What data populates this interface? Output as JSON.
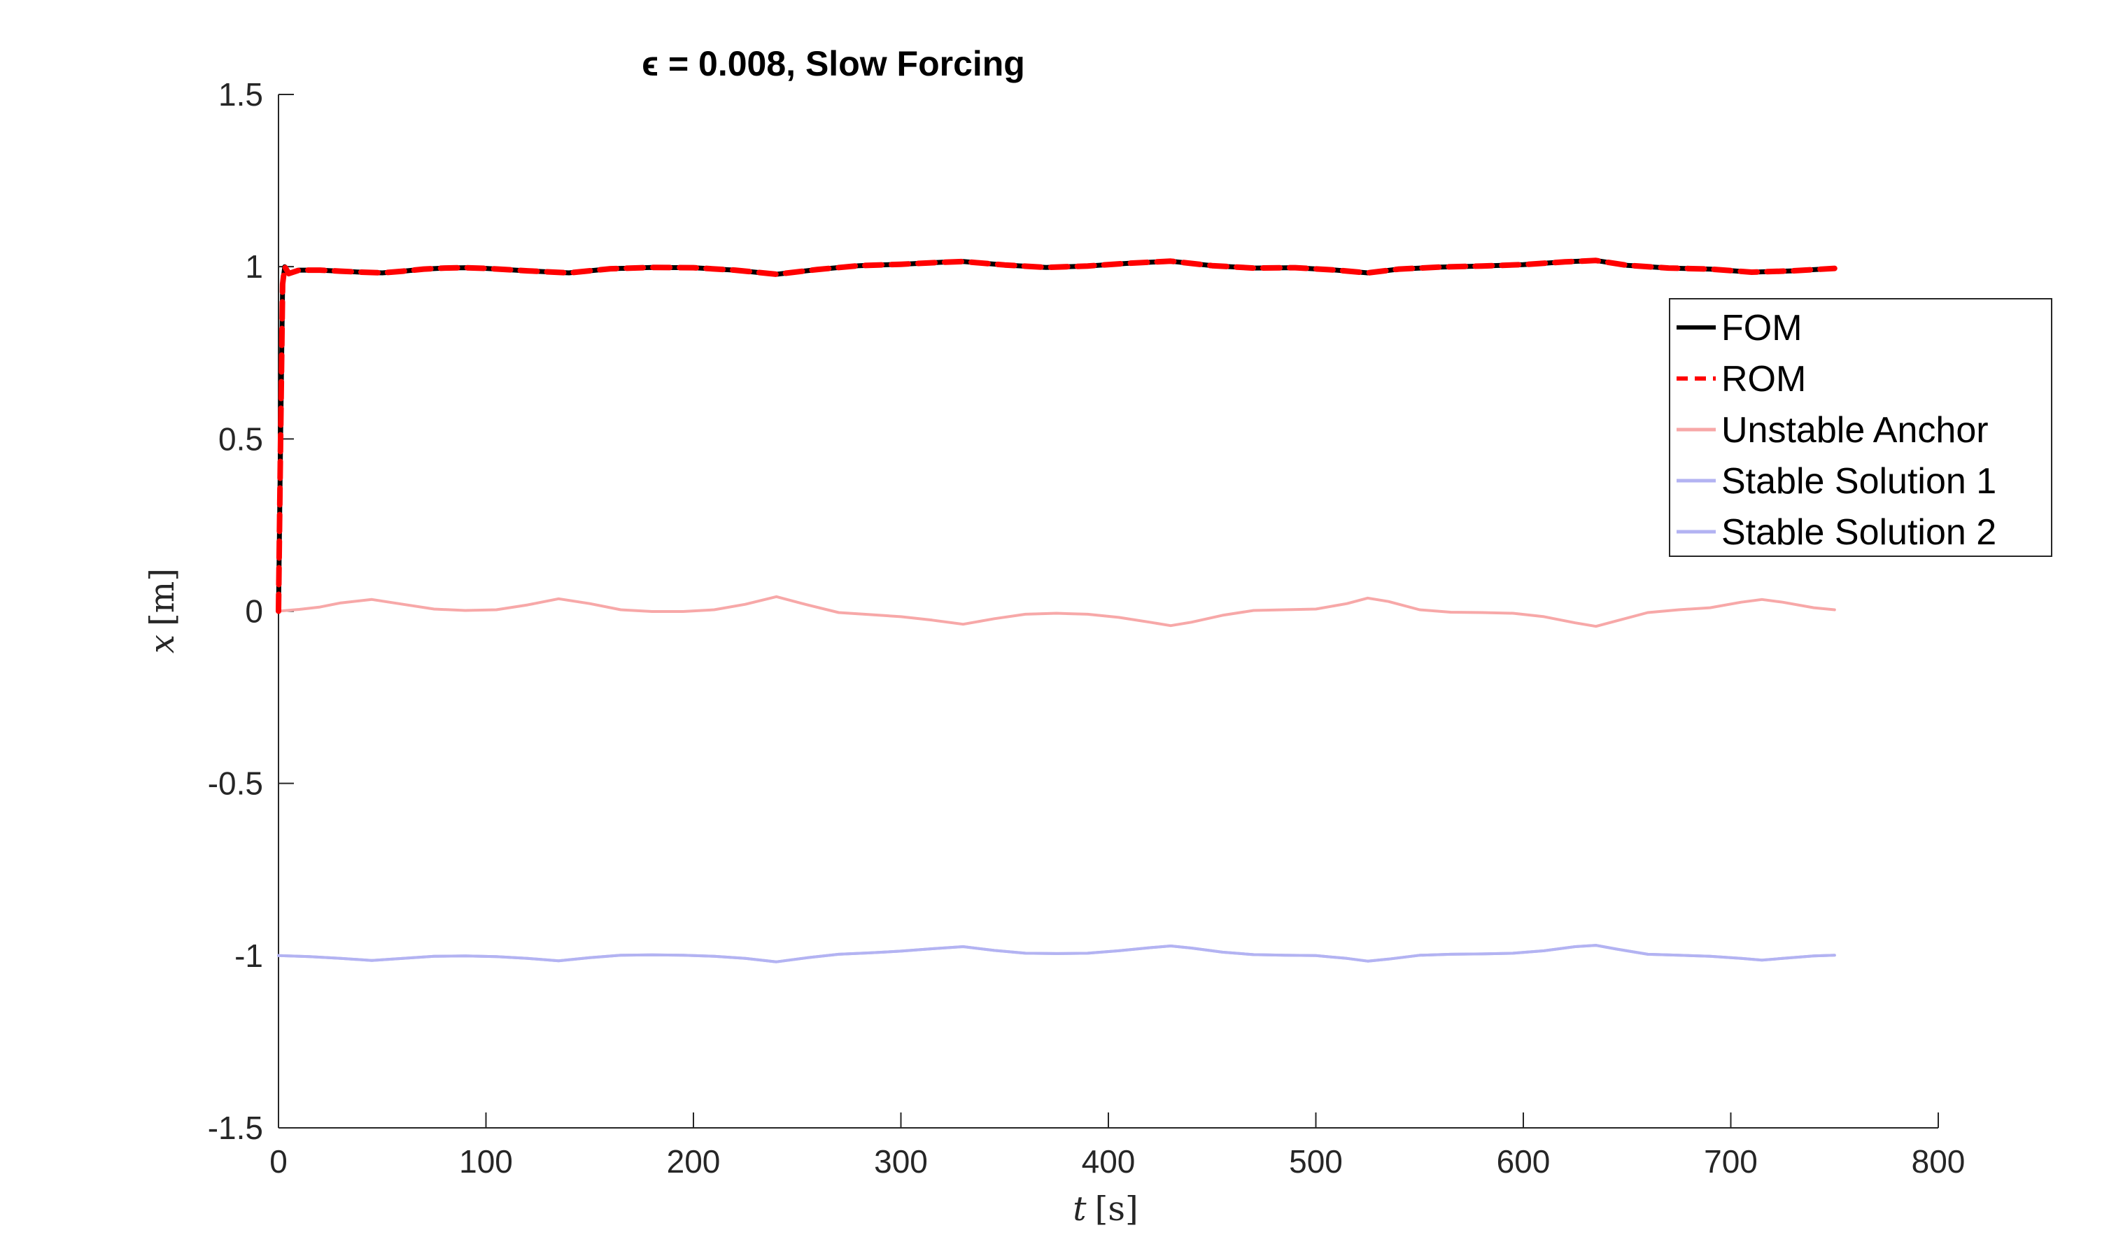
{
  "chart_data": {
    "type": "line",
    "title": "ϵ = 0.008, Slow Forcing",
    "xlabel": {
      "var": "t",
      "unit": "[s]"
    },
    "ylabel": {
      "var": "x",
      "unit": "[m]"
    },
    "xlim": [
      0,
      800
    ],
    "ylim": [
      -1.5,
      1.5
    ],
    "xticks": [
      0,
      100,
      200,
      300,
      400,
      500,
      600,
      700,
      800
    ],
    "xtick_labels": [
      "0",
      "100",
      "200",
      "300",
      "400",
      "500",
      "600",
      "700",
      "800"
    ],
    "yticks": [
      1.5,
      1,
      0.5,
      0,
      -0.5,
      -1,
      -1.5
    ],
    "ytick_labels": [
      "1.5",
      "1",
      "0.5",
      "0",
      "-0.5",
      "-1",
      "-1.5"
    ],
    "grid": false,
    "legend_position": "right",
    "series": [
      {
        "name": "FOM",
        "color": "#000000",
        "style": "solid",
        "x": [
          0,
          1,
          2,
          3,
          5,
          10,
          20,
          30,
          40,
          50,
          60,
          70,
          80,
          90,
          100,
          120,
          140,
          160,
          180,
          200,
          220,
          240,
          260,
          280,
          300,
          320,
          330,
          350,
          370,
          390,
          410,
          430,
          450,
          470,
          490,
          510,
          525,
          540,
          560,
          580,
          600,
          620,
          635,
          650,
          670,
          690,
          710,
          730,
          750
        ],
        "values": [
          0,
          0.5,
          0.95,
          1.0,
          0.98,
          0.99,
          0.99,
          0.987,
          0.984,
          0.982,
          0.987,
          0.993,
          0.996,
          0.997,
          0.995,
          0.988,
          0.982,
          0.994,
          0.998,
          0.997,
          0.99,
          0.978,
          0.992,
          1.003,
          1.007,
          1.013,
          1.015,
          1.005,
          0.998,
          1.002,
          1.01,
          1.016,
          1.003,
          0.996,
          0.997,
          0.99,
          0.982,
          0.993,
          0.999,
          1.002,
          1.006,
          1.014,
          1.018,
          1.004,
          0.996,
          0.993,
          0.984,
          0.988,
          0.995
        ]
      },
      {
        "name": "ROM",
        "color": "#ff0000",
        "style": "dashed",
        "x": [
          0,
          1,
          2,
          3,
          5,
          10,
          20,
          30,
          40,
          50,
          60,
          70,
          80,
          90,
          100,
          120,
          140,
          160,
          180,
          200,
          220,
          240,
          260,
          280,
          300,
          320,
          330,
          350,
          370,
          390,
          410,
          430,
          450,
          470,
          490,
          510,
          525,
          540,
          560,
          580,
          600,
          620,
          635,
          650,
          670,
          690,
          710,
          730,
          750
        ],
        "values": [
          0,
          0.5,
          0.95,
          1.0,
          0.98,
          0.99,
          0.99,
          0.987,
          0.984,
          0.982,
          0.987,
          0.993,
          0.996,
          0.997,
          0.995,
          0.988,
          0.982,
          0.994,
          0.998,
          0.997,
          0.99,
          0.978,
          0.992,
          1.003,
          1.007,
          1.013,
          1.015,
          1.005,
          0.998,
          1.002,
          1.01,
          1.016,
          1.003,
          0.996,
          0.997,
          0.99,
          0.982,
          0.993,
          0.999,
          1.002,
          1.006,
          1.014,
          1.018,
          1.004,
          0.996,
          0.993,
          0.984,
          0.988,
          0.995
        ]
      },
      {
        "name": "Unstable Anchor",
        "color": "#f7a8a8",
        "style": "solid",
        "x": [
          0,
          10,
          20,
          30,
          45,
          60,
          75,
          90,
          105,
          120,
          135,
          150,
          165,
          180,
          195,
          210,
          225,
          240,
          255,
          270,
          285,
          300,
          315,
          330,
          345,
          360,
          375,
          390,
          405,
          420,
          430,
          440,
          455,
          470,
          485,
          500,
          515,
          525,
          535,
          550,
          565,
          580,
          595,
          610,
          625,
          635,
          645,
          660,
          675,
          690,
          705,
          715,
          725,
          740,
          750
        ],
        "values": [
          0,
          0.005,
          0.012,
          0.024,
          0.034,
          0.02,
          0.006,
          0.002,
          0.004,
          0.018,
          0.036,
          0.022,
          0.004,
          -0.001,
          -0.001,
          0.004,
          0.02,
          0.042,
          0.018,
          -0.004,
          -0.01,
          -0.016,
          -0.026,
          -0.038,
          -0.022,
          -0.009,
          -0.006,
          -0.009,
          -0.018,
          -0.032,
          -0.042,
          -0.032,
          -0.012,
          0.002,
          0.004,
          0.006,
          0.022,
          0.038,
          0.028,
          0.004,
          -0.003,
          -0.004,
          -0.006,
          -0.016,
          -0.034,
          -0.044,
          -0.028,
          -0.004,
          0.004,
          0.01,
          0.026,
          0.034,
          0.026,
          0.01,
          0.004
        ]
      },
      {
        "name": "Stable Solution 1",
        "color": "#b3b3f2",
        "style": "solid",
        "x": [
          0,
          15,
          30,
          45,
          60,
          75,
          90,
          105,
          120,
          135,
          150,
          165,
          180,
          195,
          210,
          225,
          240,
          255,
          270,
          285,
          300,
          315,
          330,
          345,
          360,
          375,
          390,
          405,
          420,
          430,
          440,
          455,
          470,
          485,
          500,
          515,
          525,
          535,
          550,
          565,
          580,
          595,
          610,
          625,
          635,
          645,
          660,
          675,
          690,
          705,
          715,
          725,
          740,
          750
        ],
        "values": [
          -1.0,
          -1.003,
          -1.008,
          -1.014,
          -1.008,
          -1.002,
          -1.001,
          -1.003,
          -1.008,
          -1.015,
          -1.006,
          -0.999,
          -0.998,
          -0.999,
          -1.002,
          -1.008,
          -1.018,
          -1.006,
          -0.996,
          -0.992,
          -0.987,
          -0.98,
          -0.974,
          -0.985,
          -0.993,
          -0.994,
          -0.993,
          -0.986,
          -0.977,
          -0.972,
          -0.978,
          -0.99,
          -0.997,
          -0.999,
          -1.0,
          -1.008,
          -1.016,
          -1.01,
          -0.999,
          -0.996,
          -0.995,
          -0.993,
          -0.986,
          -0.974,
          -0.97,
          -0.981,
          -0.996,
          -0.999,
          -1.002,
          -1.008,
          -1.013,
          -1.008,
          -1.001,
          -0.999
        ]
      },
      {
        "name": "Stable Solution 2",
        "color": "#b3b3f2",
        "style": "solid",
        "x": [
          0,
          15,
          30,
          45,
          60,
          75,
          90,
          105,
          120,
          135,
          150,
          165,
          180,
          195,
          210,
          225,
          240,
          255,
          270,
          285,
          300,
          315,
          330,
          345,
          360,
          375,
          390,
          405,
          420,
          430,
          440,
          455,
          470,
          485,
          500,
          515,
          525,
          535,
          550,
          565,
          580,
          595,
          610,
          625,
          635,
          645,
          660,
          675,
          690,
          705,
          715,
          725,
          740,
          750
        ],
        "values": [
          -1.0,
          -1.003,
          -1.008,
          -1.014,
          -1.008,
          -1.002,
          -1.001,
          -1.003,
          -1.008,
          -1.015,
          -1.006,
          -0.999,
          -0.998,
          -0.999,
          -1.002,
          -1.008,
          -1.018,
          -1.006,
          -0.996,
          -0.992,
          -0.987,
          -0.98,
          -0.974,
          -0.985,
          -0.993,
          -0.994,
          -0.993,
          -0.986,
          -0.977,
          -0.972,
          -0.978,
          -0.99,
          -0.997,
          -0.999,
          -1.0,
          -1.008,
          -1.016,
          -1.01,
          -0.999,
          -0.996,
          -0.995,
          -0.993,
          -0.986,
          -0.974,
          -0.97,
          -0.981,
          -0.996,
          -0.999,
          -1.002,
          -1.008,
          -1.013,
          -1.008,
          -1.001,
          -0.999
        ]
      }
    ]
  }
}
